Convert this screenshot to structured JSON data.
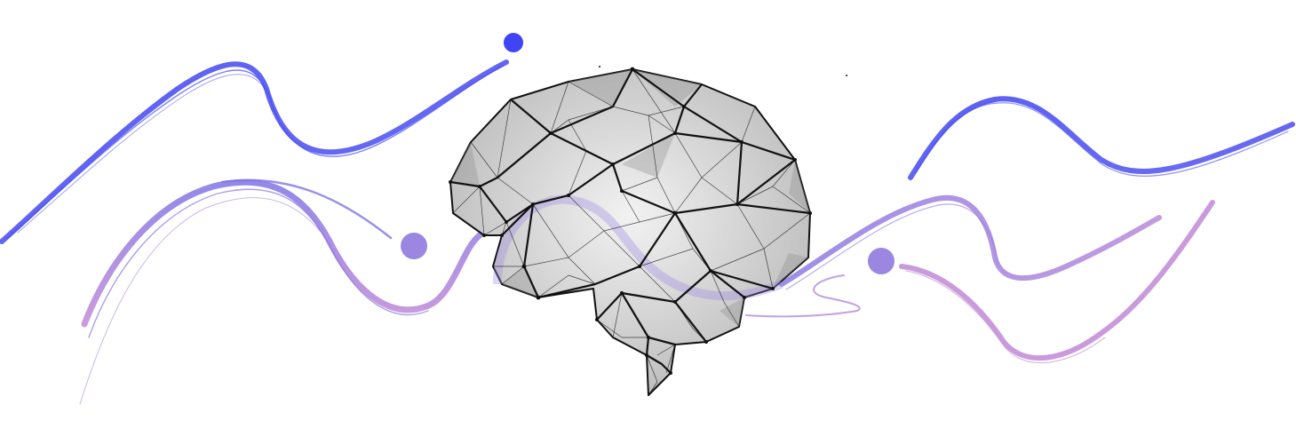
{
  "illustration": {
    "subject": "brain-mesh",
    "colors": {
      "background": "#ffffff",
      "wave_blue": "#4a4ef2",
      "wave_violet": "#8d78e0",
      "wave_pink": "#c189d6",
      "dot_blue": "#3f44f5",
      "dot_violet": "#9b87e2",
      "mesh_stroke": "#111111",
      "mesh_fill": "#9a9a9a"
    }
  }
}
